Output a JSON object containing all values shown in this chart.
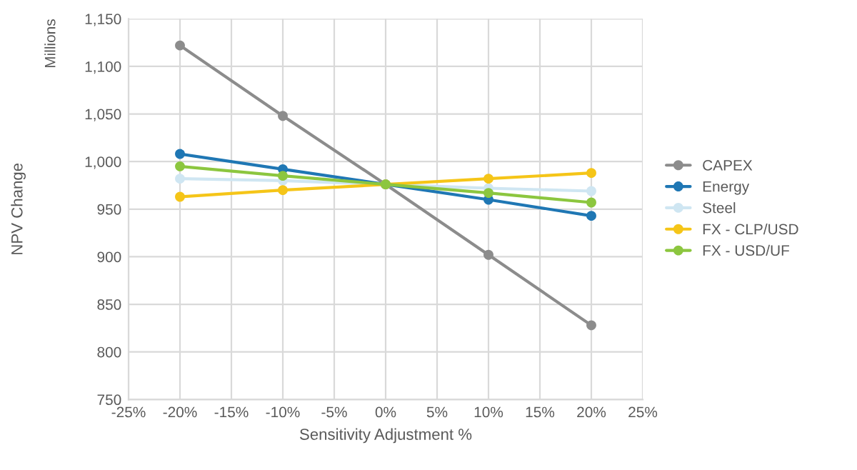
{
  "chart_data": {
    "type": "line",
    "xlabel": "Sensitivity Adjustment %",
    "ylabel": "NPV Change",
    "annotations": [
      "Millions"
    ],
    "x": [
      -20,
      -10,
      0,
      10,
      20
    ],
    "series": [
      {
        "name": "CAPEX",
        "color": "#8c8c8c",
        "values": [
          1122,
          1048,
          976,
          902,
          828
        ]
      },
      {
        "name": "Energy",
        "color": "#1f77b4",
        "values": [
          1008,
          992,
          976,
          960,
          943
        ]
      },
      {
        "name": "Steel",
        "color": "#cfe6f2",
        "values": [
          982,
          980,
          976,
          972,
          969
        ]
      },
      {
        "name": "FX - CLP/USD",
        "color": "#f5c518",
        "values": [
          963,
          970,
          976,
          982,
          988
        ]
      },
      {
        "name": "FX - USD/UF",
        "color": "#8cc63f",
        "values": [
          995,
          985,
          976,
          967,
          957
        ]
      }
    ],
    "xlim": [
      -25,
      25
    ],
    "xticks": [
      {
        "value": -25,
        "label": "-25%"
      },
      {
        "value": -20,
        "label": "-20%"
      },
      {
        "value": -15,
        "label": "-15%"
      },
      {
        "value": -10,
        "label": "-10%"
      },
      {
        "value": -5,
        "label": "-5%"
      },
      {
        "value": 0,
        "label": "0%"
      },
      {
        "value": 5,
        "label": "5%"
      },
      {
        "value": 10,
        "label": "10%"
      },
      {
        "value": 15,
        "label": "15%"
      },
      {
        "value": 20,
        "label": "20%"
      },
      {
        "value": 25,
        "label": "25%"
      }
    ],
    "ylim": [
      750,
      1150
    ],
    "yticks": [
      750,
      800,
      850,
      900,
      950,
      {
        "value": 1000,
        "label": "1,000"
      },
      {
        "value": 1050,
        "label": "1,050"
      },
      {
        "value": 1100,
        "label": "1,100"
      },
      {
        "value": 1150,
        "label": "1,150"
      }
    ],
    "grid": true,
    "legend": "right",
    "marker": "circle",
    "line_style": "solid"
  }
}
